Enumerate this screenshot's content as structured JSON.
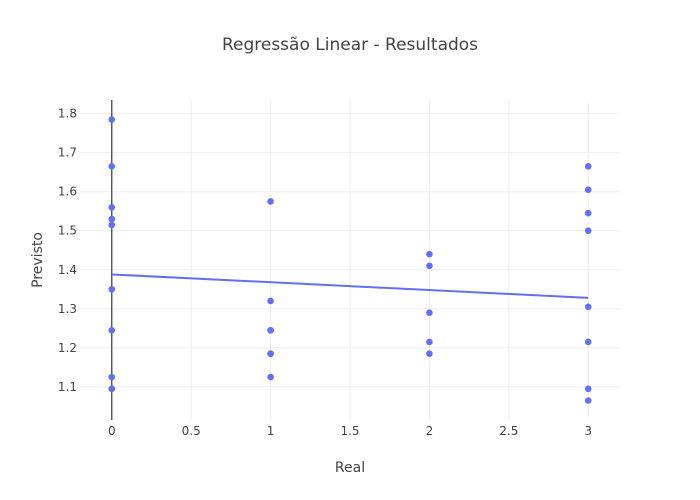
{
  "chart_data": {
    "type": "scatter",
    "title": "Regressão Linear - Resultados",
    "xlabel": "Real",
    "ylabel": "Previsto",
    "xlim": [
      -0.2,
      3.2
    ],
    "ylim": [
      1.015,
      1.835
    ],
    "x_ticks": [
      0,
      0.5,
      1,
      1.5,
      2,
      2.5,
      3
    ],
    "x_tick_labels": [
      "0",
      "0.5",
      "1",
      "1.5",
      "2",
      "2.5",
      "3"
    ],
    "y_ticks": [
      1.1,
      1.2,
      1.3,
      1.4,
      1.5,
      1.6,
      1.7,
      1.8
    ],
    "y_tick_labels": [
      "1.1",
      "1.2",
      "1.3",
      "1.4",
      "1.5",
      "1.6",
      "1.7",
      "1.8"
    ],
    "grid": true,
    "color": "#636efa",
    "series": [
      {
        "mode": "markers",
        "x": [
          0,
          0,
          0,
          0,
          0,
          0,
          0,
          0,
          0,
          0,
          1,
          1,
          1,
          1,
          1,
          1,
          1,
          2,
          2,
          2,
          2,
          2,
          3,
          3,
          3,
          3,
          3,
          3,
          3,
          3
        ],
        "y": [
          1.785,
          1.665,
          1.56,
          1.53,
          1.515,
          1.35,
          1.245,
          1.125,
          1.095,
          1.095,
          1.575,
          1.32,
          1.245,
          1.245,
          1.185,
          1.185,
          1.125,
          1.44,
          1.41,
          1.29,
          1.215,
          1.185,
          1.665,
          1.605,
          1.545,
          1.5,
          1.305,
          1.215,
          1.095,
          1.065
        ]
      },
      {
        "mode": "lines",
        "x": [
          0,
          3
        ],
        "y": [
          1.388,
          1.328
        ]
      }
    ]
  }
}
